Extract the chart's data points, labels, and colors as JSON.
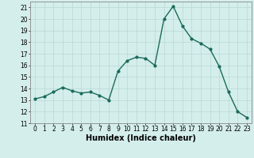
{
  "x": [
    0,
    1,
    2,
    3,
    4,
    5,
    6,
    7,
    8,
    9,
    10,
    11,
    12,
    13,
    14,
    15,
    16,
    17,
    18,
    19,
    20,
    21,
    22,
    23
  ],
  "y": [
    13.1,
    13.3,
    13.7,
    14.1,
    13.8,
    13.6,
    13.7,
    13.4,
    13.0,
    15.5,
    16.4,
    16.7,
    16.6,
    16.0,
    20.0,
    21.1,
    19.4,
    18.3,
    17.9,
    17.4,
    15.9,
    13.7,
    12.0,
    11.5
  ],
  "line_color": "#1a6b5a",
  "marker": "o",
  "markersize": 2,
  "linewidth": 1.0,
  "bg_color": "#d4eeec",
  "grid_color": "#b8d8d4",
  "xlabel": "Humidex (Indice chaleur)",
  "xlabel_fontsize": 7,
  "xlim": [
    -0.5,
    23.5
  ],
  "ylim": [
    11,
    21.5
  ],
  "yticks": [
    11,
    12,
    13,
    14,
    15,
    16,
    17,
    18,
    19,
    20,
    21
  ],
  "xticks": [
    0,
    1,
    2,
    3,
    4,
    5,
    6,
    7,
    8,
    9,
    10,
    11,
    12,
    13,
    14,
    15,
    16,
    17,
    18,
    19,
    20,
    21,
    22,
    23
  ],
  "tick_fontsize": 5.5
}
